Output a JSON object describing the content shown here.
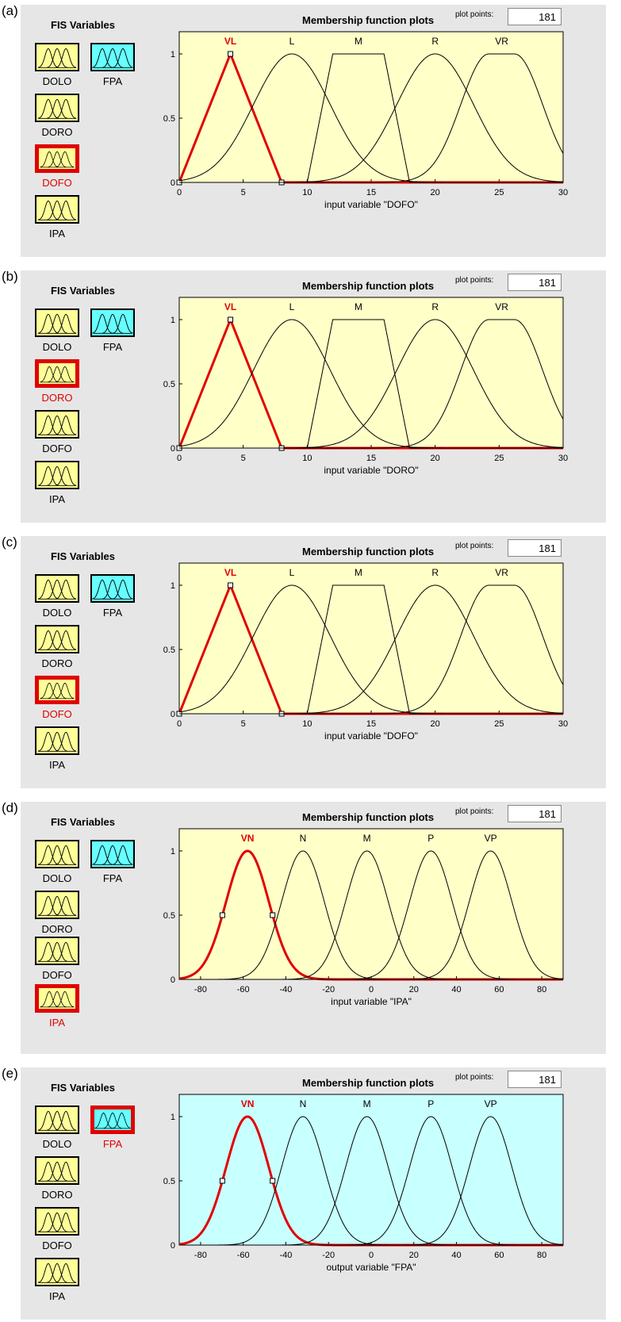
{
  "panels": [
    {
      "letter": "(a)",
      "fis_title": "FIS Variables",
      "plot_title": "Membership function plots",
      "plot_points_label": "plot points:",
      "plot_points_value": "181",
      "variables": {
        "dolo": "DOLO",
        "doro": "DORO",
        "dofo": "DOFO",
        "ipa": "IPA",
        "fpa": "FPA"
      },
      "selected": "dofo",
      "plot_bg": "#ffffc8",
      "xlabel": "input variable \"DOFO\"",
      "xmin": 0,
      "xmax": 30,
      "xticks": [
        0,
        5,
        10,
        15,
        20,
        25,
        30
      ],
      "yticks": [
        0,
        0.5,
        1
      ],
      "mfs": [
        {
          "name": "VL",
          "type": "trimf",
          "params": [
            0,
            4,
            8
          ]
        },
        {
          "name": "L",
          "type": "gaussmf",
          "params": [
            3.0,
            8.8
          ]
        },
        {
          "name": "M",
          "type": "trapmf",
          "params": [
            10,
            12,
            16,
            18
          ]
        },
        {
          "name": "R",
          "type": "gaussmf",
          "params": [
            3.0,
            20
          ]
        },
        {
          "name": "VR",
          "type": "gauss2mf",
          "params": [
            2.2,
            24.2,
            2.2,
            26.2
          ]
        }
      ],
      "selected_mf": 0
    },
    {
      "letter": "(b)",
      "fis_title": "FIS Variables",
      "plot_title": "Membership function plots",
      "plot_points_label": "plot points:",
      "plot_points_value": "181",
      "variables": {
        "dolo": "DOLO",
        "doro": "DORO",
        "dofo": "DOFO",
        "ipa": "IPA",
        "fpa": "FPA"
      },
      "selected": "doro",
      "plot_bg": "#ffffc8",
      "xlabel": "input variable \"DORO\"",
      "xmin": 0,
      "xmax": 30,
      "xticks": [
        0,
        5,
        10,
        15,
        20,
        25,
        30
      ],
      "yticks": [
        0,
        0.5,
        1
      ],
      "mfs": [
        {
          "name": "VL",
          "type": "trimf",
          "params": [
            0,
            4,
            8
          ]
        },
        {
          "name": "L",
          "type": "gaussmf",
          "params": [
            3.0,
            8.8
          ]
        },
        {
          "name": "M",
          "type": "trapmf",
          "params": [
            10,
            12,
            16,
            18
          ]
        },
        {
          "name": "R",
          "type": "gaussmf",
          "params": [
            3.0,
            20
          ]
        },
        {
          "name": "VR",
          "type": "gauss2mf",
          "params": [
            2.2,
            24.2,
            2.2,
            26.2
          ]
        }
      ],
      "selected_mf": 0
    },
    {
      "letter": "(c)",
      "fis_title": "FIS Variables",
      "plot_title": "Membership function plots",
      "plot_points_label": "plot points:",
      "plot_points_value": "181",
      "variables": {
        "dolo": "DOLO",
        "doro": "DORO",
        "dofo": "DOFO",
        "ipa": "IPA",
        "fpa": "FPA"
      },
      "selected": "dofo",
      "plot_bg": "#ffffc8",
      "xlabel": "input variable \"DOFO\"",
      "xmin": 0,
      "xmax": 30,
      "xticks": [
        0,
        5,
        10,
        15,
        20,
        25,
        30
      ],
      "yticks": [
        0,
        0.5,
        1
      ],
      "mfs": [
        {
          "name": "VL",
          "type": "trimf",
          "params": [
            0,
            4,
            8
          ]
        },
        {
          "name": "L",
          "type": "gaussmf",
          "params": [
            3.0,
            8.8
          ]
        },
        {
          "name": "M",
          "type": "trapmf",
          "params": [
            10,
            12,
            16,
            18
          ]
        },
        {
          "name": "R",
          "type": "gaussmf",
          "params": [
            3.0,
            20
          ]
        },
        {
          "name": "VR",
          "type": "gauss2mf",
          "params": [
            2.2,
            24.2,
            2.2,
            26.2
          ]
        }
      ],
      "selected_mf": 0
    },
    {
      "letter": "(d)",
      "fis_title": "FIS Variables",
      "plot_title": "Membership function plots",
      "plot_points_label": "plot points:",
      "plot_points_value": "181",
      "variables": {
        "dolo": "DOLO",
        "doro": "DORO",
        "dofo": "DOFO",
        "ipa": "IPA",
        "fpa": "FPA"
      },
      "selected": "ipa",
      "plot_bg": "#ffffc8",
      "xlabel": "input variable \"IPA\"",
      "xmin": -90,
      "xmax": 90,
      "xticks": [
        -80,
        -60,
        -40,
        -20,
        0,
        20,
        40,
        60,
        80
      ],
      "yticks": [
        0,
        0.5,
        1
      ],
      "mfs": [
        {
          "name": "VN",
          "type": "gaussmf",
          "params": [
            10,
            -58
          ]
        },
        {
          "name": "N",
          "type": "gaussmf",
          "params": [
            10,
            -32
          ]
        },
        {
          "name": "M",
          "type": "gaussmf",
          "params": [
            10,
            -2
          ]
        },
        {
          "name": "P",
          "type": "gaussmf",
          "params": [
            10,
            28
          ]
        },
        {
          "name": "VP",
          "type": "gaussmf",
          "params": [
            10,
            56
          ]
        }
      ],
      "selected_mf": 0
    },
    {
      "letter": "(e)",
      "fis_title": "FIS Variables",
      "plot_title": "Membership function plots",
      "plot_points_label": "plot points:",
      "plot_points_value": "181",
      "variables": {
        "dolo": "DOLO",
        "doro": "DORO",
        "dofo": "DOFO",
        "ipa": "IPA",
        "fpa": "FPA"
      },
      "selected": "fpa",
      "plot_bg": "#c8ffff",
      "xlabel": "output variable \"FPA\"",
      "xmin": -90,
      "xmax": 90,
      "xticks": [
        -80,
        -60,
        -40,
        -20,
        0,
        20,
        40,
        60,
        80
      ],
      "yticks": [
        0,
        0.5,
        1
      ],
      "mfs": [
        {
          "name": "VN",
          "type": "gaussmf",
          "params": [
            10,
            -58
          ]
        },
        {
          "name": "N",
          "type": "gaussmf",
          "params": [
            10,
            -32
          ]
        },
        {
          "name": "M",
          "type": "gaussmf",
          "params": [
            10,
            -2
          ]
        },
        {
          "name": "P",
          "type": "gaussmf",
          "params": [
            10,
            28
          ]
        },
        {
          "name": "VP",
          "type": "gaussmf",
          "params": [
            10,
            56
          ]
        }
      ],
      "selected_mf": 0
    }
  ],
  "colors": {
    "selected": "#e00000",
    "input_box": "#ffff99",
    "output_box": "#66ffff",
    "panel_bg": "#e6e6e6"
  },
  "icons": {
    "input_box": "gaussian-mf-icon",
    "output_box": "gaussian-mf-icon"
  }
}
